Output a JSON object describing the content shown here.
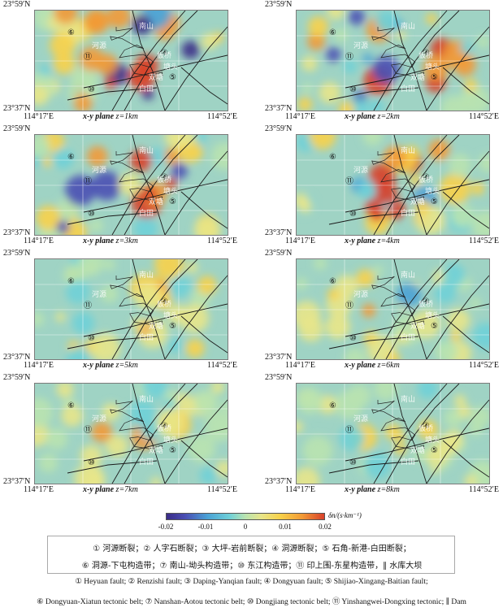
{
  "panels": [
    {
      "lat_top": "23°59′N",
      "lat_bot": "23°37′N",
      "lon_left": "114°17′E",
      "lon_right": "114°52′E",
      "plane": "x-y plane",
      "depth": "z=1km",
      "depth_km": 1
    },
    {
      "lat_top": "23°59′N",
      "lat_bot": "23°37′N",
      "lon_left": "114°17′E",
      "lon_right": "114°52′E",
      "plane": "x-y plane",
      "depth": "z=2km",
      "depth_km": 2
    },
    {
      "lat_top": "23°59′N",
      "lat_bot": "23°37′N",
      "lon_left": "114°17′E",
      "lon_right": "114°52′E",
      "plane": "x-y plane",
      "depth": "z=3km",
      "depth_km": 3
    },
    {
      "lat_top": "23°59′N",
      "lat_bot": "23°37′N",
      "lon_left": "114°17′E",
      "lon_right": "114°52′E",
      "plane": "x-y plane",
      "depth": "z=4km",
      "depth_km": 4
    },
    {
      "lat_top": "23°59′N",
      "lat_bot": "23°37′N",
      "lon_left": "114°17′E",
      "lon_right": "114°52′E",
      "plane": "x-y plane",
      "depth": "z=5km",
      "depth_km": 5
    },
    {
      "lat_top": "23°59′N",
      "lat_bot": "23°37′N",
      "lon_left": "114°17′E",
      "lon_right": "114°52′E",
      "plane": "x-y plane",
      "depth": "z=6km",
      "depth_km": 6
    },
    {
      "lat_top": "23°59′N",
      "lat_bot": "23°37′N",
      "lon_left": "114°17′E",
      "lon_right": "114°52′E",
      "plane": "x-y plane",
      "depth": "z=7km",
      "depth_km": 7
    },
    {
      "lat_top": "23°59′N",
      "lat_bot": "23°37′N",
      "lon_left": "114°17′E",
      "lon_right": "114°52′E",
      "plane": "x-y plane",
      "depth": "z=8km",
      "depth_km": 8
    }
  ],
  "map_labels": {
    "nanshan": "南山",
    "heyuan": "河源",
    "banxiao": "板桥",
    "shuangtou": "塘头",
    "shuangtang": "双塘",
    "baitian": "白田",
    "jiang": "江",
    "shanting": "山下"
  },
  "colorbar": {
    "ticks": [
      "-0.02",
      "-0.01",
      "0",
      "0.01",
      "0.02"
    ],
    "tick_values": [
      -0.02,
      -0.01,
      0,
      0.01,
      0.02
    ],
    "unit": "δn/(s·km⁻¹)",
    "colors": [
      "#3a2b87",
      "#4a4fb4",
      "#4aa2d6",
      "#6fd0d8",
      "#b9e3b0",
      "#e8e58a",
      "#f8d24a",
      "#f29a36",
      "#d8402a"
    ]
  },
  "legend_cn": {
    "line1": "① 河源断裂；② 人字石断裂；③ 大坪-岩前断裂；④ 洞源断裂；⑤ 石角-新港-白田断裂；",
    "line2": "⑥ 洞源-下屯构造带；⑦ 南山-坳头构造带；⑩ 东江构造带；⑪ 印上围-东星构造带，∥ 水库大坝"
  },
  "legend_en": {
    "line1": "① Heyuan fault; ② Renzishi fault; ③ Daping-Yanqian fault; ④ Dongyuan fault; ⑤ Shijiao-Xingang-Baitian fault;",
    "line2": "⑥ Dongyuan-Xiatun tectonic belt; ⑦ Nanshan-Aotou tectonic belt; ⑩ Dongjiang tectonic belt; ⑪ Yinshangwei-Dongxing tectonic; ∥ Dam"
  }
}
